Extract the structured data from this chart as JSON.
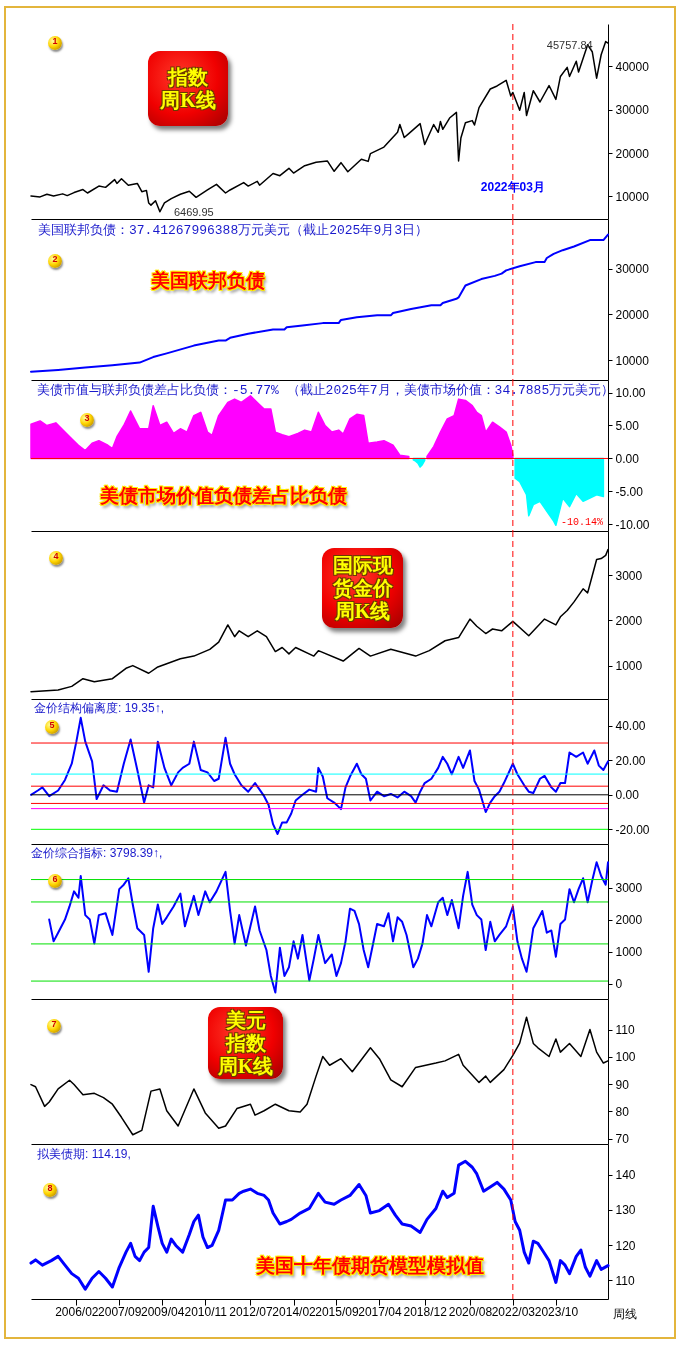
{
  "chart_data": [
    {
      "type": "line",
      "title": "指数周K线",
      "annotations": [
        "1",
        {
          "text": "45757.84",
          "x": "2025-08",
          "y": 45757.84
        },
        {
          "text": "6469.95",
          "x": "2009-03",
          "y": 6469.95
        }
      ],
      "x": [
        "2004-06",
        "2004-10",
        "2005-01",
        "2005-04",
        "2005-08",
        "2005-10",
        "2006-01",
        "2006-05",
        "2006-07",
        "2006-12",
        "2007-03",
        "2007-07",
        "2007-08",
        "2007-10",
        "2008-01",
        "2008-05",
        "2008-07",
        "2008-09",
        "2008-10",
        "2008-11",
        "2009-01",
        "2009-03",
        "2009-05",
        "2009-08",
        "2009-12",
        "2010-04",
        "2010-07",
        "2010-12",
        "2011-04",
        "2011-08",
        "2011-10",
        "2012-04",
        "2012-06",
        "2012-10",
        "2012-11",
        "2013-05",
        "2013-08",
        "2013-12",
        "2014-02",
        "2014-07",
        "2014-12",
        "2015-05",
        "2015-08",
        "2015-11",
        "2016-02",
        "2016-08",
        "2016-11",
        "2016-12",
        "2017-06",
        "2017-12",
        "2018-01",
        "2018-03",
        "2018-05",
        "2018-10",
        "2018-12",
        "2019-04",
        "2019-06",
        "2019-07",
        "2019-08",
        "2019-11",
        "2020-02",
        "2020-03",
        "2020-04",
        "2020-06",
        "2020-09",
        "2020-10",
        "2020-12",
        "2021-05",
        "2021-08",
        "2021-12",
        "2022-02",
        "2022-03",
        "2022-06",
        "2022-08",
        "2022-09",
        "2022-12",
        "2023-03",
        "2023-07",
        "2023-10",
        "2023-12",
        "2024-03",
        "2024-04",
        "2024-07",
        "2024-08",
        "2024-12",
        "2025-02",
        "2025-04",
        "2025-06",
        "2025-08",
        "2025-09"
      ],
      "values": [
        10100,
        9900,
        10500,
        10100,
        10600,
        10200,
        10900,
        11600,
        10800,
        12400,
        12100,
        13900,
        13000,
        14100,
        12600,
        13000,
        11100,
        11400,
        8500,
        8000,
        9000,
        6469.95,
        8500,
        9500,
        10500,
        11200,
        9800,
        11500,
        12800,
        10800,
        11500,
        13200,
        12400,
        13500,
        12600,
        15300,
        14800,
        16500,
        15400,
        17100,
        17900,
        18200,
        15800,
        17800,
        15700,
        18600,
        18100,
        19900,
        21400,
        24800,
        26600,
        23600,
        24500,
        26800,
        22000,
        26600,
        24800,
        27300,
        25500,
        28100,
        29400,
        18200,
        23500,
        27000,
        27500,
        26500,
        30500,
        34800,
        35500,
        36800,
        33200,
        34000,
        29900,
        34000,
        28700,
        34400,
        31800,
        35600,
        32400,
        37700,
        39800,
        37700,
        41200,
        38700,
        45000,
        43400,
        37300,
        42700,
        45757.84,
        45400
      ],
      "color": "#000000",
      "xlim": [
        "2004-06",
        "2025-09"
      ],
      "ylim": [
        4800,
        49800
      ],
      "yticks": [
        10000,
        20000,
        30000,
        40000
      ],
      "tick_labels": "y",
      "ref_lines": [
        {
          "axis": "x",
          "value": "2022-03",
          "label": "2022年03月",
          "color": "#ff0000",
          "line_style": "dashed"
        }
      ]
    },
    {
      "type": "line",
      "title": "美国联邦负债",
      "subtitle": "美国联邦负债：37.41267996388万元美元（截止2025年9月3日）",
      "annotations": [
        "2"
      ],
      "x": [
        "2004-06",
        "2005-06",
        "2006-06",
        "2007-06",
        "2008-06",
        "2008-12",
        "2009-06",
        "2010-06",
        "2011-05",
        "2011-08",
        "2011-10",
        "2012-06",
        "2013-05",
        "2013-10",
        "2013-11",
        "2014-06",
        "2015-03",
        "2015-10",
        "2015-11",
        "2016-06",
        "2017-03",
        "2017-09",
        "2017-10",
        "2018-06",
        "2019-03",
        "2019-07",
        "2019-08",
        "2020-02",
        "2020-03",
        "2020-06",
        "2021-01",
        "2021-07",
        "2021-10",
        "2021-12",
        "2022-06",
        "2023-01",
        "2023-05",
        "2023-06",
        "2023-09",
        "2024-01",
        "2024-06",
        "2025-01",
        "2025-07",
        "2025-08",
        "2025-09"
      ],
      "values": [
        7500,
        7900,
        8400,
        8900,
        9500,
        10700,
        11500,
        13200,
        14300,
        14300,
        14900,
        15800,
        16700,
        16700,
        17200,
        17600,
        18100,
        18100,
        18800,
        19400,
        19800,
        19800,
        20300,
        21200,
        22000,
        22000,
        22500,
        23400,
        23700,
        26300,
        27700,
        28400,
        28900,
        29600,
        30500,
        31400,
        31400,
        32300,
        33200,
        34000,
        34800,
        36200,
        36200,
        36800,
        37400
      ],
      "color": "#0000ff",
      "xlim": [
        "2004-06",
        "2025-09"
      ],
      "ylim": [
        5700,
        40800
      ],
      "yticks": [
        10000,
        20000,
        30000
      ],
      "tick_labels": "y",
      "ref_lines": [
        {
          "axis": "x",
          "value": "2022-03",
          "color": "#ff0000",
          "line_style": "dashed"
        }
      ]
    },
    {
      "type": "area",
      "title": "美债市场价值负债差占比负债",
      "subtitle": "美债市值与联邦负债差占比负债：-5.77% （截止2025年7月，美债市场价值：34.7885万元美元）",
      "annotations": [
        "3",
        {
          "text": "-10.14%",
          "x": "2023-10",
          "y": -10.14
        }
      ],
      "x": [
        "2004-06",
        "2004-10",
        "2005-01",
        "2005-05",
        "2005-09",
        "2005-12",
        "2006-03",
        "2006-06",
        "2006-09",
        "2006-12",
        "2007-04",
        "2007-06",
        "2007-08",
        "2007-11",
        "2008-02",
        "2008-06",
        "2008-10",
        "2008-12",
        "2009-03",
        "2009-06",
        "2009-09",
        "2009-12",
        "2010-03",
        "2010-06",
        "2010-09",
        "2010-12",
        "2011-02",
        "2011-05",
        "2011-09",
        "2011-12",
        "2012-03",
        "2012-07",
        "2012-10",
        "2013-01",
        "2013-04",
        "2013-06",
        "2013-09",
        "2013-12",
        "2014-04",
        "2014-07",
        "2014-10",
        "2015-01",
        "2015-04",
        "2015-07",
        "2015-10",
        "2015-12",
        "2016-03",
        "2016-06",
        "2016-09",
        "2016-11",
        "2017-03",
        "2017-06",
        "2017-10",
        "2018-01",
        "2018-05",
        "2018-07",
        "2018-08",
        "2018-09",
        "2018-10",
        "2018-11",
        "2018-12",
        "2019-01",
        "2019-04",
        "2019-07",
        "2019-10",
        "2020-01",
        "2020-03",
        "2020-06",
        "2020-09",
        "2020-11",
        "2021-01",
        "2021-03",
        "2021-06",
        "2021-09",
        "2021-12",
        "2022-02",
        "2022-03",
        "2022-04",
        "2022-06",
        "2022-09",
        "2022-10",
        "2022-12",
        "2023-03",
        "2023-06",
        "2023-09",
        "2023-10",
        "2024-01",
        "2024-04",
        "2024-07",
        "2024-10",
        "2025-01",
        "2025-04",
        "2025-07"
      ],
      "series": [
        {
          "color": "#ff00ff",
          "values": [
            5.2,
            5.7,
            5.0,
            5.4,
            4.0,
            3.0,
            2.0,
            1.2,
            2.3,
            2.7,
            2.0,
            1.5,
            3.3,
            5.0,
            7.2,
            4.5,
            4.5,
            8.0,
            5.0,
            5.5,
            3.8,
            4.5,
            4.0,
            6.5,
            7.0,
            4.0,
            3.5,
            6.5,
            8.5,
            9.0,
            8.5,
            9.5,
            8.5,
            7.5,
            7.5,
            4.0,
            3.6,
            3.3,
            3.8,
            4.3,
            4.0,
            7.0,
            5.0,
            4.0,
            4.3,
            3.7,
            6.0,
            6.7,
            6.5,
            2.3,
            2.5,
            2.7,
            2.0,
            0.5,
            0.3,
            null,
            null,
            null,
            null,
            null,
            null,
            0.3,
            1.8,
            4.0,
            6.0,
            6.5,
            9.0,
            8.8,
            8.0,
            7.0,
            6.5,
            4.0,
            5.5,
            4.8,
            4.0,
            2.0,
            0.5,
            null,
            null,
            null,
            null,
            null,
            null,
            null,
            null,
            null,
            null,
            null,
            null,
            null,
            null,
            null,
            null
          ]
        },
        {
          "color": "#00ffff",
          "values": [
            null,
            null,
            null,
            null,
            null,
            null,
            null,
            null,
            null,
            null,
            null,
            null,
            null,
            null,
            null,
            null,
            null,
            null,
            null,
            null,
            null,
            null,
            null,
            null,
            null,
            null,
            null,
            null,
            null,
            null,
            null,
            null,
            null,
            null,
            null,
            null,
            null,
            null,
            null,
            null,
            null,
            null,
            null,
            null,
            null,
            null,
            null,
            null,
            null,
            null,
            null,
            null,
            null,
            null,
            null,
            -0.2,
            -0.4,
            -0.7,
            -1.3,
            -0.9,
            -0.3,
            null,
            null,
            null,
            null,
            null,
            null,
            null,
            null,
            null,
            null,
            null,
            null,
            null,
            null,
            null,
            null,
            -3.0,
            -3.5,
            -5.5,
            -8.7,
            -7.0,
            -6.5,
            -8.0,
            -9.5,
            -10.14,
            -6.0,
            -7.3,
            -5.3,
            -6.5,
            -6.0,
            -5.5,
            -5.77
          ]
        }
      ],
      "xlim": [
        "2004-06",
        "2025-09"
      ],
      "ylim": [
        -11,
        11.9
      ],
      "yticks": [
        {
          "value": 10,
          "label": "10.00"
        },
        {
          "value": 5,
          "label": "5.00"
        },
        {
          "value": 0,
          "label": "0.00"
        },
        {
          "value": -5,
          "label": "-5.00"
        },
        {
          "value": -10,
          "label": "-10.00"
        }
      ],
      "tick_labels": "y",
      "ref_lines": [
        {
          "axis": "y",
          "value": 0,
          "color": "#ff0000"
        },
        {
          "axis": "x",
          "value": "2022-03",
          "color": "#ff0000",
          "line_style": "dashed"
        }
      ]
    },
    {
      "type": "line",
      "title": "国际现货金价周K线",
      "annotations": [
        "4"
      ],
      "x": [
        "2004-06",
        "2005-06",
        "2005-12",
        "2006-05",
        "2006-10",
        "2007-06",
        "2007-12",
        "2008-03",
        "2008-10",
        "2009-02",
        "2009-12",
        "2010-06",
        "2011-01",
        "2011-05",
        "2011-09",
        "2011-12",
        "2012-02",
        "2012-06",
        "2012-10",
        "2013-02",
        "2013-06",
        "2013-09",
        "2013-12",
        "2014-03",
        "2014-11",
        "2015-01",
        "2015-12",
        "2016-07",
        "2016-12",
        "2017-09",
        "2018-08",
        "2019-02",
        "2019-09",
        "2020-03",
        "2020-08",
        "2020-11",
        "2021-03",
        "2021-06",
        "2021-10",
        "2022-03",
        "2022-10",
        "2023-05",
        "2023-10",
        "2023-12",
        "2024-03",
        "2024-06",
        "2024-10",
        "2024-12",
        "2025-02",
        "2025-04",
        "2025-06",
        "2025-08",
        "2025-09"
      ],
      "values": [
        420,
        460,
        540,
        710,
        640,
        710,
        940,
        1000,
        830,
        970,
        1150,
        1210,
        1360,
        1520,
        1900,
        1640,
        1770,
        1640,
        1770,
        1640,
        1310,
        1400,
        1260,
        1400,
        1210,
        1330,
        1100,
        1380,
        1210,
        1360,
        1210,
        1330,
        1550,
        1620,
        2030,
        1870,
        1710,
        1810,
        1770,
        1980,
        1660,
        2030,
        1900,
        2080,
        2220,
        2410,
        2700,
        2610,
        2990,
        3350,
        3370,
        3440,
        3570
      ],
      "color": "#000000",
      "xlim": [
        "2004-06",
        "2025-09"
      ],
      "ylim": [
        260,
        3980
      ],
      "yticks": [
        1000,
        2000,
        3000
      ],
      "tick_labels": "y",
      "ref_lines": [
        {
          "axis": "x",
          "value": "2022-03",
          "color": "#ff0000",
          "line_style": "dashed"
        }
      ]
    },
    {
      "type": "line",
      "title": "金价结构偏离度: 19.35↑,",
      "annotations": [
        "5"
      ],
      "x": [
        "2004-06",
        "2004-09",
        "2004-11",
        "2005-02",
        "2005-06",
        "2005-09",
        "2005-12",
        "2006-02",
        "2006-04",
        "2006-06",
        "2006-09",
        "2006-11",
        "2007-02",
        "2007-05",
        "2007-08",
        "2007-11",
        "2008-02",
        "2008-05",
        "2008-08",
        "2008-10",
        "2008-12",
        "2009-02",
        "2009-05",
        "2009-08",
        "2009-11",
        "2010-01",
        "2010-04",
        "2010-06",
        "2010-09",
        "2010-12",
        "2011-03",
        "2011-05",
        "2011-08",
        "2011-10",
        "2011-12",
        "2012-03",
        "2012-06",
        "2012-09",
        "2012-11",
        "2013-01",
        "2013-03",
        "2013-05",
        "2013-07",
        "2013-09",
        "2013-11",
        "2014-01",
        "2014-03",
        "2014-06",
        "2014-09",
        "2014-12",
        "2015-01",
        "2015-03",
        "2015-05",
        "2015-08",
        "2015-11",
        "2016-01",
        "2016-03",
        "2016-06",
        "2016-08",
        "2016-10",
        "2016-12",
        "2017-03",
        "2017-06",
        "2017-09",
        "2017-12",
        "2018-03",
        "2018-06",
        "2018-08",
        "2018-10",
        "2018-12",
        "2019-03",
        "2019-06",
        "2019-08",
        "2019-10",
        "2019-12",
        "2020-03",
        "2020-05",
        "2020-08",
        "2020-10",
        "2020-12",
        "2021-03",
        "2021-05",
        "2021-07",
        "2021-09",
        "2021-11",
        "2022-03",
        "2022-05",
        "2022-08",
        "2022-10",
        "2022-12",
        "2023-03",
        "2023-05",
        "2023-08",
        "2023-10",
        "2023-12",
        "2024-02",
        "2024-04",
        "2024-07",
        "2024-10",
        "2024-12",
        "2025-03",
        "2025-05",
        "2025-07",
        "2025-09"
      ],
      "values": [
        0,
        2.5,
        4.3,
        -0.8,
        2.5,
        8.6,
        18,
        30.8,
        44.6,
        30.8,
        19.4,
        -2.5,
        5.5,
        2.5,
        1.8,
        18,
        32,
        14.4,
        -4.5,
        5.5,
        4.3,
        30.8,
        15.6,
        5.5,
        13,
        15.6,
        18,
        30.8,
        14.4,
        13,
        8,
        9.3,
        33,
        18,
        11.9,
        5.5,
        1.8,
        6.8,
        3,
        -0.8,
        -5.8,
        -17,
        -22.7,
        -16,
        -16,
        -10.8,
        -3.3,
        0,
        3,
        1.8,
        15.6,
        10.6,
        -2,
        -4.5,
        -8.3,
        4.3,
        10.6,
        18,
        11.9,
        9.3,
        -3.3,
        1.8,
        -0.8,
        0.5,
        -1.5,
        1.8,
        -0.8,
        -4.5,
        1.8,
        6.8,
        9.3,
        15.6,
        22,
        18,
        11.9,
        22,
        15.6,
        25.7,
        8,
        3,
        -10,
        -4.5,
        -0.8,
        1.8,
        6.8,
        18,
        11.9,
        5.5,
        1.8,
        1,
        9.3,
        11,
        4.3,
        1.8,
        6.8,
        6.8,
        24.5,
        22,
        24.5,
        18,
        25.7,
        16.9,
        14.4,
        19.35
      ],
      "color": "#0000ff",
      "xlim": [
        "2004-06",
        "2025-09"
      ],
      "ylim": [
        -28.5,
        55.5
      ],
      "yticks": [
        {
          "value": 40,
          "label": "40.00"
        },
        {
          "value": 20,
          "label": "20.00"
        },
        {
          "value": 0,
          "label": "0.00"
        },
        {
          "value": -20,
          "label": "-20.00"
        }
      ],
      "tick_labels": "y",
      "ref_lines": [
        {
          "axis": "y",
          "value": 30,
          "color": "#ff0000"
        },
        {
          "axis": "y",
          "value": 12,
          "color": "#00ffff"
        },
        {
          "axis": "y",
          "value": 5,
          "color": "#ff0000"
        },
        {
          "axis": "y",
          "value": 0,
          "color": "#000000"
        },
        {
          "axis": "y",
          "value": -5,
          "color": "#ff0000"
        },
        {
          "axis": "y",
          "value": -8,
          "color": "#ff00ff"
        },
        {
          "axis": "y",
          "value": -20,
          "color": "#00ff00"
        },
        {
          "axis": "x",
          "value": "2022-03",
          "color": "#ff0000",
          "line_style": "dashed"
        }
      ]
    },
    {
      "type": "line",
      "title": "金价综合指标: 3798.39↑,",
      "annotations": [
        "6"
      ],
      "x": [
        "2005-02",
        "2005-04",
        "2005-06",
        "2005-09",
        "2005-11",
        "2006-01",
        "2006-03",
        "2006-04",
        "2006-06",
        "2006-08",
        "2006-10",
        "2006-12",
        "2007-03",
        "2007-06",
        "2007-09",
        "2007-11",
        "2008-01",
        "2008-03",
        "2008-05",
        "2008-08",
        "2008-10",
        "2008-12",
        "2009-02",
        "2009-04",
        "2009-06",
        "2009-09",
        "2009-12",
        "2010-02",
        "2010-04",
        "2010-06",
        "2010-08",
        "2010-11",
        "2011-01",
        "2011-04",
        "2011-08",
        "2011-10",
        "2011-12",
        "2012-02",
        "2012-05",
        "2012-09",
        "2012-11",
        "2013-02",
        "2013-04",
        "2013-06",
        "2013-08",
        "2013-10",
        "2013-12",
        "2014-02",
        "2014-04",
        "2014-06",
        "2014-09",
        "2014-11",
        "2015-01",
        "2015-04",
        "2015-07",
        "2015-09",
        "2015-11",
        "2016-01",
        "2016-03",
        "2016-05",
        "2016-07",
        "2016-09",
        "2016-11",
        "2017-01",
        "2017-03",
        "2017-06",
        "2017-08",
        "2017-10",
        "2017-12",
        "2018-02",
        "2018-04",
        "2018-07",
        "2018-09",
        "2018-11",
        "2019-01",
        "2019-03",
        "2019-06",
        "2019-08",
        "2019-10",
        "2019-12",
        "2020-03",
        "2020-05",
        "2020-07",
        "2020-09",
        "2020-11",
        "2021-01",
        "2021-03",
        "2021-05",
        "2021-07",
        "2021-09",
        "2021-12",
        "2022-03",
        "2022-05",
        "2022-07",
        "2022-09",
        "2022-10",
        "2022-12",
        "2023-02",
        "2023-04",
        "2023-06",
        "2023-08",
        "2023-10",
        "2023-12",
        "2024-02",
        "2024-04",
        "2024-06",
        "2024-08",
        "2024-10",
        "2024-12",
        "2025-02",
        "2025-04",
        "2025-06",
        "2025-08",
        "2025-09"
      ],
      "values": [
        2010,
        1330,
        1600,
        2010,
        2420,
        2890,
        2690,
        3370,
        2150,
        2010,
        1260,
        2150,
        2210,
        1530,
        2960,
        3100,
        3300,
        2480,
        1740,
        1530,
        380,
        1740,
        2480,
        1870,
        2080,
        2420,
        2820,
        1800,
        2280,
        2750,
        2150,
        2890,
        2550,
        2890,
        3500,
        2280,
        1260,
        2150,
        1200,
        2420,
        1670,
        1060,
        250,
        -270,
        1130,
        250,
        520,
        1330,
        790,
        1530,
        110,
        790,
        1530,
        650,
        920,
        250,
        650,
        1330,
        2350,
        2280,
        1870,
        1060,
        520,
        1200,
        1870,
        1800,
        2210,
        1330,
        2080,
        1940,
        1530,
        520,
        790,
        1260,
        2150,
        1800,
        2550,
        2690,
        2150,
        2620,
        1740,
        2750,
        3500,
        2480,
        2150,
        2010,
        1060,
        1940,
        1330,
        1530,
        1800,
        2420,
        1330,
        790,
        380,
        790,
        1740,
        2010,
        2280,
        1600,
        1670,
        850,
        1870,
        2010,
        2960,
        2550,
        2960,
        3300,
        2550,
        3230,
        3800,
        3370,
        3100,
        3798.39
      ],
      "color": "#0000ff",
      "xlim": [
        "2004-06",
        "2025-09"
      ],
      "ylim": [
        -470,
        4370
      ],
      "yticks": [
        0,
        1000,
        2000,
        3000
      ],
      "tick_labels": "y",
      "ref_lines": [
        {
          "axis": "y",
          "value": 3260,
          "color": "#00e000"
        },
        {
          "axis": "y",
          "value": 2560,
          "color": "#00e000"
        },
        {
          "axis": "y",
          "value": 1250,
          "color": "#00e000"
        },
        {
          "axis": "y",
          "value": 90,
          "color": "#00e000"
        },
        {
          "axis": "x",
          "value": "2022-03",
          "color": "#ff0000",
          "line_style": "dashed"
        }
      ]
    },
    {
      "type": "line",
      "title": "美元指数周K线",
      "annotations": [
        "7"
      ],
      "x": [
        "2004-06",
        "2004-08",
        "2004-12",
        "2005-02",
        "2005-06",
        "2005-11",
        "2006-01",
        "2006-05",
        "2006-10",
        "2007-02",
        "2007-06",
        "2007-10",
        "2008-03",
        "2008-07",
        "2008-11",
        "2009-03",
        "2009-06",
        "2009-11",
        "2010-06",
        "2010-11",
        "2011-05",
        "2011-08",
        "2012-01",
        "2012-07",
        "2012-09",
        "2013-01",
        "2013-06",
        "2013-12",
        "2014-05",
        "2014-08",
        "2014-12",
        "2015-03",
        "2015-06",
        "2015-11",
        "2016-04",
        "2016-12",
        "2017-04",
        "2017-09",
        "2018-02",
        "2018-08",
        "2019-05",
        "2019-09",
        "2020-03",
        "2020-05",
        "2020-12",
        "2021-03",
        "2021-05",
        "2021-11",
        "2022-03",
        "2022-06",
        "2022-09",
        "2022-12",
        "2023-02",
        "2023-07",
        "2023-10",
        "2023-12",
        "2024-04",
        "2024-09",
        "2025-01",
        "2025-04",
        "2025-07",
        "2025-09"
      ],
      "values": [
        89.8,
        89,
        81.8,
        83.4,
        88.2,
        91.4,
        89.8,
        86.1,
        86.6,
        85,
        82.6,
        77.8,
        71.4,
        73,
        87.4,
        88.2,
        80.2,
        74.6,
        88.2,
        79.4,
        73.8,
        74.6,
        81,
        82.6,
        78.6,
        80.2,
        82.6,
        80.2,
        79.7,
        82.6,
        92.9,
        100.1,
        96.9,
        99.3,
        94.5,
        103.3,
        99.3,
        91.5,
        89,
        96.1,
        97.7,
        98.5,
        100.9,
        96.9,
        90.6,
        92.9,
        90.6,
        95.3,
        100.5,
        105,
        114.5,
        104.9,
        103.3,
        100.1,
        106.5,
        101.7,
        104.9,
        100.1,
        110,
        101.7,
        97.7,
        98.5
      ],
      "color": "#000000",
      "xlim": [
        "2004-06",
        "2025-09"
      ],
      "ylim": [
        68,
        121.2
      ],
      "yticks": [
        70,
        80,
        90,
        100,
        110
      ],
      "tick_labels": "y",
      "ref_lines": [
        {
          "axis": "x",
          "value": "2022-03",
          "color": "#ff0000",
          "line_style": "dashed"
        }
      ]
    },
    {
      "type": "line",
      "title": "美国十年债期货模型模拟值",
      "subtitle": "拟美债期: 114.19,",
      "xlabel": "周线",
      "annotations": [
        "8"
      ],
      "x": [
        "2004-06",
        "2004-08",
        "2004-11",
        "2005-03",
        "2005-06",
        "2005-09",
        "2005-12",
        "2006-03",
        "2006-06",
        "2006-09",
        "2006-12",
        "2007-03",
        "2007-06",
        "2007-09",
        "2007-12",
        "2008-02",
        "2008-04",
        "2008-06",
        "2008-08",
        "2008-10",
        "2008-12",
        "2009-02",
        "2009-04",
        "2009-06",
        "2009-08",
        "2009-10",
        "2010-01",
        "2010-04",
        "2010-06",
        "2010-08",
        "2010-10",
        "2010-12",
        "2011-02",
        "2011-05",
        "2011-08",
        "2011-11",
        "2012-02",
        "2012-04",
        "2012-07",
        "2012-10",
        "2013-01",
        "2013-03",
        "2013-05",
        "2013-08",
        "2013-11",
        "2014-01",
        "2014-05",
        "2014-09",
        "2015-01",
        "2015-04",
        "2015-08",
        "2015-11",
        "2016-03",
        "2016-07",
        "2016-10",
        "2016-12",
        "2017-04",
        "2017-08",
        "2017-11",
        "2018-02",
        "2018-06",
        "2018-10",
        "2019-01",
        "2019-05",
        "2019-08",
        "2019-10",
        "2020-01",
        "2020-03",
        "2020-06",
        "2020-09",
        "2020-11",
        "2021-02",
        "2021-05",
        "2021-08",
        "2021-11",
        "2022-02",
        "2022-04",
        "2022-06",
        "2022-08",
        "2022-10",
        "2022-12",
        "2023-02",
        "2023-04",
        "2023-07",
        "2023-10",
        "2023-12",
        "2024-02",
        "2024-04",
        "2024-07",
        "2024-09",
        "2024-11",
        "2025-01",
        "2025-04",
        "2025-06",
        "2025-09"
      ],
      "values": [
        114.9,
        115.8,
        114.3,
        115.6,
        116.8,
        114.3,
        111.9,
        110.6,
        107.5,
        110.6,
        112.5,
        110.6,
        108.1,
        113.7,
        118,
        120.5,
        116.8,
        115.6,
        118,
        119.3,
        131,
        125.4,
        120.5,
        118,
        121.7,
        119.9,
        118,
        123,
        126.7,
        128.5,
        122.3,
        119.3,
        119.9,
        124.2,
        132.8,
        132.8,
        134.7,
        135.3,
        135.9,
        134.7,
        134.1,
        132.8,
        129.1,
        126,
        126.7,
        127.3,
        129.1,
        130.4,
        134.7,
        132.2,
        131.6,
        132.8,
        134.1,
        137.2,
        134.1,
        129.1,
        129.8,
        131.6,
        128.5,
        126,
        125.4,
        123.6,
        127.3,
        130.4,
        135.3,
        133.5,
        134.7,
        142.7,
        143.8,
        142.1,
        140.2,
        135.3,
        136.5,
        137.8,
        135.9,
        132.8,
        126.7,
        124.2,
        118,
        114.9,
        121.1,
        120.5,
        118.6,
        115.6,
        109.4,
        115.6,
        114.3,
        111.9,
        116.8,
        118.6,
        113.7,
        111.2,
        115.6,
        113.1,
        114.19
      ],
      "color": "#0000ff",
      "xlim": [
        "2004-06",
        "2025-09"
      ],
      "ylim": [
        104.7,
        148.7
      ],
      "yticks": [
        110,
        120,
        130,
        140
      ],
      "xticks": [
        {
          "value": "2006-02",
          "label": "2006/02"
        },
        {
          "value": "2007-09",
          "label": "2007/09"
        },
        {
          "value": "2009-04",
          "label": "2009/04"
        },
        {
          "value": "2010-11",
          "label": "2010/11"
        },
        {
          "value": "2012-07",
          "label": "2012/07"
        },
        {
          "value": "2014-02",
          "label": "2014/02"
        },
        {
          "value": "2015-09",
          "label": "2015/09"
        },
        {
          "value": "2017-04",
          "label": "2017/04"
        },
        {
          "value": "2018-12",
          "label": "2018/12"
        },
        {
          "value": "2020-08",
          "label": "2020/08"
        },
        {
          "value": "2022-03",
          "label": "2022/03"
        },
        {
          "value": "2023-10",
          "label": "2023/10"
        }
      ],
      "ref_lines": [
        {
          "axis": "x",
          "value": "2022-03",
          "color": "#ff0000",
          "line_style": "dashed"
        }
      ]
    }
  ]
}
